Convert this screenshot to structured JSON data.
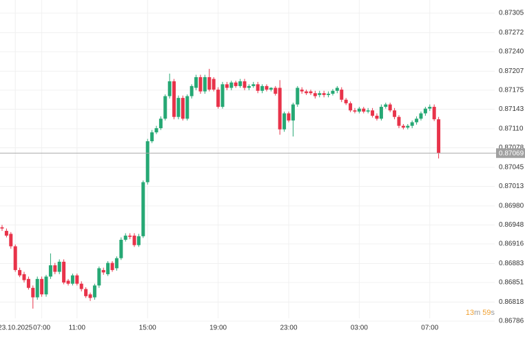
{
  "chart_data": {
    "type": "candlestick",
    "categories": [
      null,
      null,
      null,
      "23.10.2025",
      null,
      null,
      null,
      null,
      null,
      "07:00",
      null,
      null,
      null,
      null,
      null,
      null,
      null,
      "11:00",
      null,
      null,
      null,
      null,
      null,
      null,
      null,
      null,
      null,
      null,
      null,
      null,
      null,
      null,
      null,
      "15:00",
      null,
      null,
      null,
      null,
      null,
      null,
      null,
      null,
      null,
      null,
      null,
      null,
      null,
      null,
      null,
      "19:00",
      null,
      null,
      null,
      null,
      null,
      null,
      null,
      null,
      null,
      null,
      null,
      null,
      null,
      null,
      null,
      "23:00",
      null,
      null,
      null,
      null,
      null,
      null,
      null,
      null,
      null,
      null,
      null,
      null,
      null,
      null,
      null,
      "03:00",
      null,
      null,
      null,
      null,
      null,
      null,
      null,
      null,
      null,
      null,
      null,
      null,
      null,
      null,
      null,
      "07:00",
      null,
      null
    ],
    "open": [
      0.86944,
      0.86938,
      0.86933,
      0.86912,
      0.86872,
      0.86865,
      0.86857,
      0.86842,
      0.86826,
      0.86857,
      0.86831,
      0.86861,
      0.8688,
      0.86869,
      0.86886,
      0.86854,
      0.86849,
      0.86863,
      0.86849,
      0.8684,
      0.86831,
      0.86826,
      0.86846,
      0.86872,
      0.86865,
      0.86884,
      0.86875,
      0.86892,
      0.86923,
      0.8693,
      0.8693,
      0.86914,
      0.86929,
      0.8702,
      0.87089,
      0.87104,
      0.87111,
      0.87127,
      0.87165,
      0.8719,
      0.8713,
      0.87162,
      0.87127,
      0.87165,
      0.87179,
      0.87197,
      0.87173,
      0.87197,
      0.87194,
      0.87176,
      0.87147,
      0.87185,
      0.87179,
      0.87188,
      0.87182,
      0.8719,
      0.87179,
      0.87182,
      0.87185,
      0.87174,
      0.87182,
      0.87176,
      0.87179,
      0.87179,
      0.87109,
      0.87136,
      0.87124,
      0.87151,
      0.87176,
      0.87173,
      0.87173,
      0.8717,
      0.87167,
      0.8717,
      0.87167,
      0.87169,
      0.87174,
      0.87176,
      0.87159,
      0.87153,
      0.87141,
      0.87139,
      0.87144,
      0.87139,
      0.87141,
      0.87132,
      0.87127,
      0.87147,
      0.87151,
      0.87141,
      0.8713,
      0.87115,
      0.87112,
      0.87115,
      0.87121,
      0.87127,
      0.87136,
      0.87144,
      0.87147,
      0.87126
    ],
    "high": [
      0.86948,
      0.86942,
      0.86936,
      0.86915,
      0.86876,
      0.86869,
      0.86861,
      0.86846,
      0.86861,
      0.86861,
      0.86864,
      0.869,
      0.86884,
      0.8689,
      0.8689,
      0.86857,
      0.86866,
      0.86866,
      0.86853,
      0.86843,
      0.86834,
      0.86849,
      0.86878,
      0.86876,
      0.86887,
      0.86887,
      0.86895,
      0.86927,
      0.86934,
      0.86934,
      0.86934,
      0.86933,
      0.87023,
      0.87093,
      0.87108,
      0.87115,
      0.87131,
      0.87168,
      0.87203,
      0.87194,
      0.87166,
      0.87166,
      0.87168,
      0.87185,
      0.87201,
      0.87201,
      0.87201,
      0.87211,
      0.87197,
      0.8718,
      0.87189,
      0.87189,
      0.87191,
      0.87191,
      0.87194,
      0.87194,
      0.87185,
      0.87189,
      0.87189,
      0.87185,
      0.87185,
      0.8718,
      0.87182,
      0.87192,
      0.87139,
      0.87139,
      0.87154,
      0.87182,
      0.8718,
      0.87176,
      0.87176,
      0.87174,
      0.87174,
      0.87174,
      0.87173,
      0.87177,
      0.87182,
      0.8718,
      0.87162,
      0.87156,
      0.87145,
      0.87147,
      0.87147,
      0.87145,
      0.87145,
      0.87136,
      0.87151,
      0.87154,
      0.87154,
      0.87145,
      0.87133,
      0.87118,
      0.87118,
      0.87124,
      0.87131,
      0.87139,
      0.87147,
      0.87151,
      0.87151,
      0.8713
    ],
    "low": [
      0.86938,
      0.86927,
      0.86908,
      0.86869,
      0.8686,
      0.86851,
      0.86839,
      0.86807,
      0.86822,
      0.86827,
      0.86827,
      0.86857,
      0.86865,
      0.86865,
      0.86848,
      0.86846,
      0.86846,
      0.86846,
      0.86836,
      0.86825,
      0.8682,
      0.86822,
      0.86842,
      0.86864,
      0.86862,
      0.86869,
      0.86871,
      0.86889,
      0.8692,
      0.86924,
      0.86911,
      0.86911,
      0.86926,
      0.87016,
      0.87086,
      0.87101,
      0.87108,
      0.87124,
      0.87161,
      0.87126,
      0.87126,
      0.87124,
      0.87124,
      0.87161,
      0.87175,
      0.87169,
      0.87169,
      0.87173,
      0.87173,
      0.87144,
      0.87144,
      0.87175,
      0.87175,
      0.87179,
      0.87179,
      0.87175,
      0.87175,
      0.87179,
      0.8717,
      0.8717,
      0.87173,
      0.87173,
      0.87166,
      0.871,
      0.87105,
      0.87121,
      0.87097,
      0.87147,
      0.87169,
      0.87167,
      0.87167,
      0.87161,
      0.87163,
      0.87163,
      0.87163,
      0.87166,
      0.8717,
      0.87155,
      0.8715,
      0.87138,
      0.87136,
      0.87136,
      0.87136,
      0.87136,
      0.87129,
      0.87124,
      0.87124,
      0.87144,
      0.87138,
      0.87126,
      0.87111,
      0.87109,
      0.87109,
      0.87111,
      0.87117,
      0.87124,
      0.87132,
      0.8714,
      0.87123,
      0.8706
    ],
    "close": [
      0.86942,
      0.8693,
      0.86912,
      0.86872,
      0.86863,
      0.86855,
      0.86842,
      0.86826,
      0.86857,
      0.86831,
      0.86861,
      0.8688,
      0.86869,
      0.86886,
      0.86851,
      0.86849,
      0.86863,
      0.86849,
      0.8684,
      0.86828,
      0.86825,
      0.86846,
      0.86875,
      0.86868,
      0.86884,
      0.86872,
      0.86892,
      0.86923,
      0.8693,
      0.86928,
      0.86914,
      0.86929,
      0.8702,
      0.87089,
      0.87104,
      0.87111,
      0.87127,
      0.87165,
      0.8719,
      0.8713,
      0.87162,
      0.87127,
      0.87165,
      0.87182,
      0.87197,
      0.87173,
      0.87197,
      0.87176,
      0.87176,
      0.87147,
      0.87185,
      0.87179,
      0.87188,
      0.87182,
      0.8719,
      0.87179,
      0.87182,
      0.87185,
      0.87174,
      0.87182,
      0.87176,
      0.87179,
      0.87169,
      0.87109,
      0.87136,
      0.87124,
      0.87151,
      0.87179,
      0.87173,
      0.8717,
      0.8717,
      0.87165,
      0.8717,
      0.87167,
      0.87169,
      0.87174,
      0.87179,
      0.87159,
      0.87153,
      0.87141,
      0.87139,
      0.87144,
      0.87139,
      0.87141,
      0.87132,
      0.87127,
      0.87147,
      0.87151,
      0.87141,
      0.8713,
      0.87115,
      0.87112,
      0.87115,
      0.87121,
      0.87127,
      0.87136,
      0.87144,
      0.87147,
      0.87126,
      0.87069
    ],
    "up_color": "#26a874",
    "down_color": "#e8334a",
    "current_price": 0.87069,
    "ylim": [
      0.86786,
      0.87327
    ],
    "yticks": [
      0.87305,
      0.87272,
      {
        "value": 0.8724,
        "label": "0.87240"
      },
      0.87207,
      0.87175,
      0.87143,
      {
        "value": 0.8711,
        "label": "0.87110"
      },
      0.87078,
      0.87045,
      0.87013,
      {
        "value": 0.8698,
        "label": "0.86980"
      },
      0.86948,
      0.86916,
      0.86883,
      0.86851,
      0.86818,
      0.86786
    ],
    "grid": true
  },
  "timer": [
    "13",
    "m",
    "59",
    "s"
  ]
}
